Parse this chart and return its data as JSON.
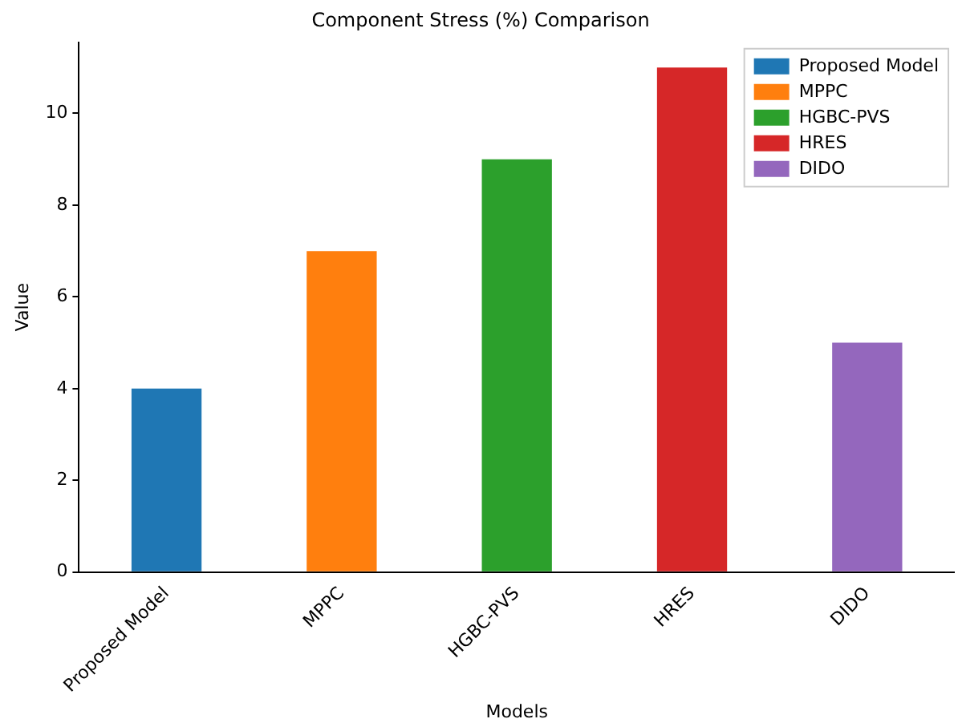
{
  "chart_data": {
    "type": "bar",
    "title": "Component Stress (%) Comparison",
    "xlabel": "Models",
    "ylabel": "Value",
    "categories": [
      "Proposed Model",
      "MPPC",
      "HGBC-PVS",
      "HRES",
      "DIDO"
    ],
    "series": [
      {
        "name": "Proposed Model",
        "color": "#1f77b4",
        "values": [
          4,
          null,
          null,
          null,
          null
        ]
      },
      {
        "name": "MPPC",
        "color": "#ff7f0e",
        "values": [
          null,
          7,
          null,
          null,
          null
        ]
      },
      {
        "name": "HGBC-PVS",
        "color": "#2ca02c",
        "values": [
          null,
          null,
          9,
          null,
          null
        ]
      },
      {
        "name": "HRES",
        "color": "#d62728",
        "values": [
          null,
          null,
          null,
          11,
          null
        ]
      },
      {
        "name": "DIDO",
        "color": "#9467bd",
        "values": [
          null,
          null,
          null,
          null,
          5
        ]
      }
    ],
    "ylim": [
      0,
      11.55
    ],
    "yticks": [
      0,
      2,
      4,
      6,
      8,
      10
    ],
    "grid": false,
    "legend": "top right"
  }
}
